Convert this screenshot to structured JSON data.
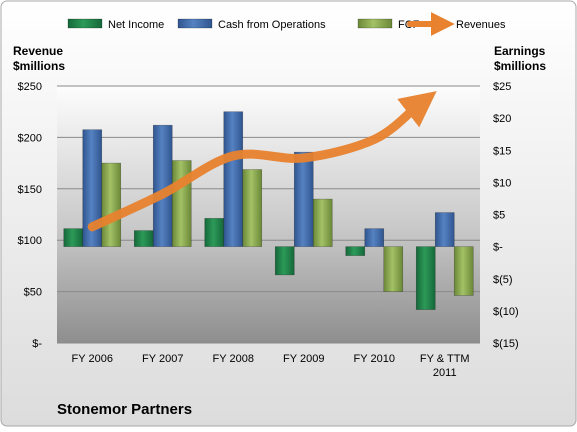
{
  "chart_data": {
    "type": "bar",
    "title": "Stonemor Partners",
    "categories": [
      "FY 2006",
      "FY 2007",
      "FY 2008",
      "FY 2009",
      "FY 2010",
      "FY & TTM 2011"
    ],
    "left_axis": {
      "label_line1": "Revenue",
      "label_line2": "$millions",
      "ylim": [
        0,
        250
      ],
      "ticks": [
        {
          "value": 0,
          "label": "$-"
        },
        {
          "value": 50,
          "label": "$50"
        },
        {
          "value": 100,
          "label": "$100"
        },
        {
          "value": 150,
          "label": "$150"
        },
        {
          "value": 200,
          "label": "$200"
        },
        {
          "value": 250,
          "label": "$250"
        }
      ]
    },
    "right_axis": {
      "label_line1": "Earnings",
      "label_line2": "$millions",
      "ylim": [
        -15,
        25
      ],
      "ticks": [
        {
          "value": -15,
          "label": "$(15)"
        },
        {
          "value": -10,
          "label": "$(10)"
        },
        {
          "value": -5,
          "label": "$(5)"
        },
        {
          "value": 0,
          "label": "$-"
        },
        {
          "value": 5,
          "label": "$5"
        },
        {
          "value": 10,
          "label": "$10"
        },
        {
          "value": 15,
          "label": "$15"
        },
        {
          "value": 20,
          "label": "$20"
        },
        {
          "value": 25,
          "label": "$25"
        }
      ]
    },
    "series": [
      {
        "name": "Net Income",
        "kind": "bar",
        "axis": "right",
        "color": "#1e8a4c",
        "values": [
          2.8,
          2.5,
          4.4,
          -4.4,
          -1.4,
          -9.8
        ]
      },
      {
        "name": "Cash from Operations",
        "kind": "bar",
        "axis": "right",
        "color": "#4470b0",
        "values": [
          18.2,
          18.9,
          21.0,
          14.7,
          2.8,
          5.3
        ]
      },
      {
        "name": "FCF",
        "kind": "bar",
        "axis": "right",
        "color": "#8ead54",
        "values": [
          13.0,
          13.4,
          12.0,
          7.4,
          -7.0,
          -7.6
        ]
      },
      {
        "name": "Revenues",
        "kind": "line",
        "axis": "left",
        "color": "#e8822e",
        "values": [
          113,
          145,
          182,
          180,
          198,
          230
        ]
      }
    ],
    "legend_position": "top",
    "grid": true
  }
}
